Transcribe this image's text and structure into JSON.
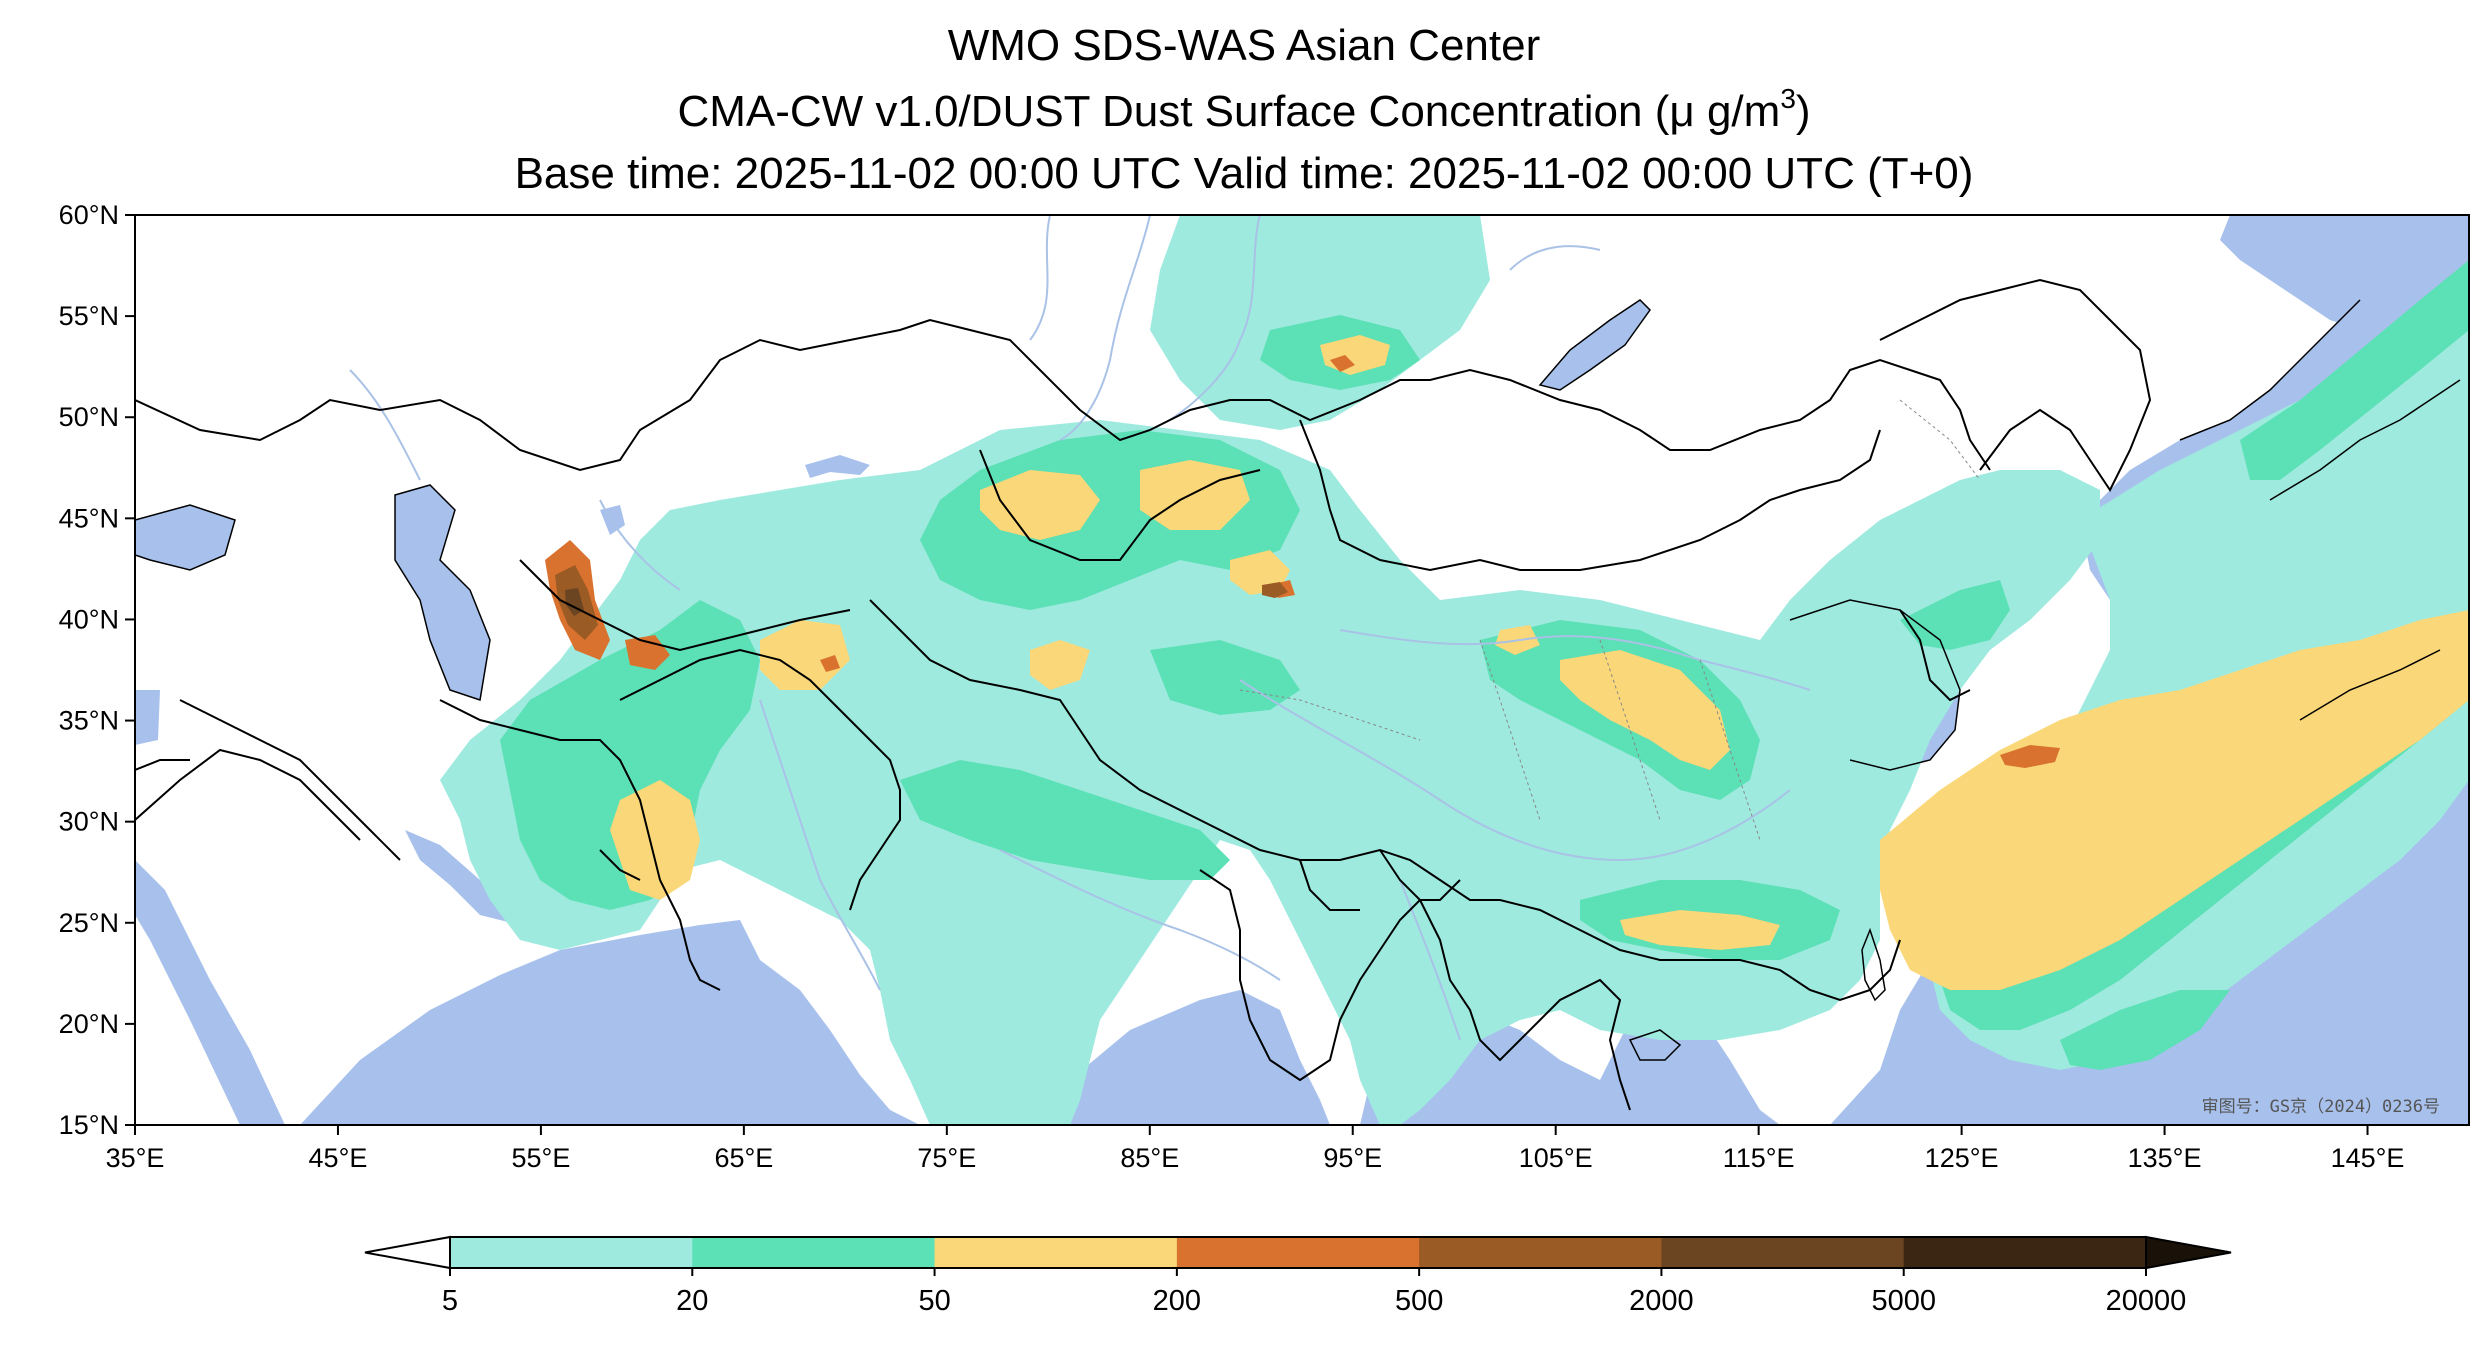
{
  "title": {
    "line1": "WMO SDS-WAS Asian Center",
    "line2_prefix": "CMA-CW v1.0/DUST Dust Surface Concentration (",
    "line2_unit": "μ g/m",
    "line2_sup": "3",
    "line2_suffix": ")",
    "line3": "Base time: 2025-11-02 00:00 UTC Valid time: 2025-11-02 00:00 UTC (T+0)"
  },
  "map": {
    "lon_range": [
      35,
      150
    ],
    "lat_range": [
      15,
      60
    ],
    "lon_ticks": [
      {
        "value": 35,
        "label": "35°E"
      },
      {
        "value": 45,
        "label": "45°E"
      },
      {
        "value": 55,
        "label": "55°E"
      },
      {
        "value": 65,
        "label": "65°E"
      },
      {
        "value": 75,
        "label": "75°E"
      },
      {
        "value": 85,
        "label": "85°E"
      },
      {
        "value": 95,
        "label": "95°E"
      },
      {
        "value": 105,
        "label": "105°E"
      },
      {
        "value": 115,
        "label": "115°E"
      },
      {
        "value": 125,
        "label": "125°E"
      },
      {
        "value": 135,
        "label": "135°E"
      },
      {
        "value": 145,
        "label": "145°E"
      }
    ],
    "lat_ticks": [
      {
        "value": 60,
        "label": "60°N"
      },
      {
        "value": 55,
        "label": "55°N"
      },
      {
        "value": 50,
        "label": "50°N"
      },
      {
        "value": 45,
        "label": "45°N"
      },
      {
        "value": 40,
        "label": "40°N"
      },
      {
        "value": 35,
        "label": "35°N"
      },
      {
        "value": 30,
        "label": "30°N"
      },
      {
        "value": 25,
        "label": "25°N"
      },
      {
        "value": 20,
        "label": "20°N"
      },
      {
        "value": 15,
        "label": "15°N"
      }
    ],
    "approval_text": "审图号：GS京（2024）0236号",
    "colors": {
      "ocean": "#a7c1ec",
      "land": "#ffffff",
      "river": "#a9c2e6",
      "border": "#000000"
    }
  },
  "colorbar": {
    "levels": [
      "5",
      "20",
      "50",
      "200",
      "500",
      "2000",
      "5000",
      "20000"
    ],
    "colors": [
      "#9eeadf",
      "#5ce0b5",
      "#fad778",
      "#d9722e",
      "#9b5b24",
      "#6b4421",
      "#3b2614"
    ],
    "under_color": "#ffffff",
    "over_color": "#1a1208"
  }
}
